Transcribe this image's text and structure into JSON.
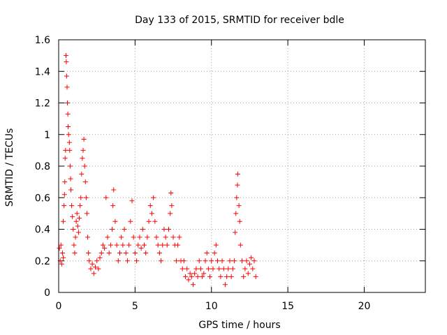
{
  "chart_data": {
    "type": "scatter",
    "title": "Day 133 of 2015, SRMTID for receiver bdle",
    "xlabel": "GPS time / hours",
    "ylabel": "SRMTID / TECUs",
    "xlim": [
      0,
      24
    ],
    "ylim": [
      0,
      1.6
    ],
    "xticks": [
      0,
      5,
      10,
      15,
      20
    ],
    "yticks": [
      0,
      0.2,
      0.4,
      0.6,
      0.8,
      1,
      1.2,
      1.4,
      1.6
    ],
    "xtick_labels": [
      "0",
      "5",
      "10",
      "15",
      "20"
    ],
    "ytick_labels": [
      "0",
      "0.2",
      "0.4",
      "0.6",
      "0.8",
      "1",
      "1.2",
      "1.4",
      "1.6"
    ],
    "grid": true,
    "marker": "+",
    "color": "#ff0000",
    "series": [
      {
        "name": "SRMTID",
        "points": [
          [
            0.05,
            0.28
          ],
          [
            0.1,
            0.2
          ],
          [
            0.15,
            0.3
          ],
          [
            0.2,
            0.18
          ],
          [
            0.25,
            0.25
          ],
          [
            0.3,
            0.22
          ],
          [
            0.3,
            0.45
          ],
          [
            0.35,
            0.55
          ],
          [
            0.38,
            0.62
          ],
          [
            0.4,
            0.7
          ],
          [
            0.42,
            0.85
          ],
          [
            0.45,
            0.9
          ],
          [
            0.48,
            1.5
          ],
          [
            0.5,
            1.46
          ],
          [
            0.52,
            1.37
          ],
          [
            0.55,
            1.3
          ],
          [
            0.57,
            1.2
          ],
          [
            0.6,
            1.13
          ],
          [
            0.62,
            1.05
          ],
          [
            0.65,
            1.0
          ],
          [
            0.7,
            0.95
          ],
          [
            0.72,
            0.9
          ],
          [
            0.75,
            0.8
          ],
          [
            0.78,
            0.72
          ],
          [
            0.8,
            0.65
          ],
          [
            0.85,
            0.55
          ],
          [
            0.9,
            0.48
          ],
          [
            0.95,
            0.4
          ],
          [
            1.0,
            0.3
          ],
          [
            1.05,
            0.25
          ],
          [
            1.1,
            0.35
          ],
          [
            1.15,
            0.45
          ],
          [
            1.2,
            0.5
          ],
          [
            1.25,
            0.42
          ],
          [
            1.3,
            0.38
          ],
          [
            1.35,
            0.47
          ],
          [
            1.4,
            0.55
          ],
          [
            1.45,
            0.6
          ],
          [
            1.5,
            0.75
          ],
          [
            1.55,
            0.85
          ],
          [
            1.6,
            0.9
          ],
          [
            1.65,
            0.97
          ],
          [
            1.7,
            0.8
          ],
          [
            1.75,
            0.7
          ],
          [
            1.8,
            0.6
          ],
          [
            1.85,
            0.5
          ],
          [
            1.9,
            0.35
          ],
          [
            1.95,
            0.25
          ],
          [
            2.0,
            0.2
          ],
          [
            2.1,
            0.15
          ],
          [
            2.2,
            0.18
          ],
          [
            2.3,
            0.12
          ],
          [
            2.4,
            0.16
          ],
          [
            2.5,
            0.2
          ],
          [
            2.6,
            0.15
          ],
          [
            2.7,
            0.22
          ],
          [
            2.8,
            0.25
          ],
          [
            2.9,
            0.3
          ],
          [
            3.0,
            0.28
          ],
          [
            3.1,
            0.6
          ],
          [
            3.2,
            0.35
          ],
          [
            3.3,
            0.25
          ],
          [
            3.4,
            0.3
          ],
          [
            3.5,
            0.4
          ],
          [
            3.55,
            0.55
          ],
          [
            3.6,
            0.65
          ],
          [
            3.7,
            0.45
          ],
          [
            3.8,
            0.3
          ],
          [
            3.9,
            0.2
          ],
          [
            4.0,
            0.25
          ],
          [
            4.1,
            0.35
          ],
          [
            4.2,
            0.3
          ],
          [
            4.3,
            0.4
          ],
          [
            4.4,
            0.25
          ],
          [
            4.5,
            0.2
          ],
          [
            4.6,
            0.3
          ],
          [
            4.7,
            0.45
          ],
          [
            4.8,
            0.58
          ],
          [
            4.9,
            0.35
          ],
          [
            5.0,
            0.25
          ],
          [
            5.1,
            0.2
          ],
          [
            5.2,
            0.3
          ],
          [
            5.3,
            0.35
          ],
          [
            5.4,
            0.28
          ],
          [
            5.5,
            0.4
          ],
          [
            5.6,
            0.3
          ],
          [
            5.7,
            0.25
          ],
          [
            5.8,
            0.35
          ],
          [
            5.9,
            0.45
          ],
          [
            6.0,
            0.55
          ],
          [
            6.1,
            0.5
          ],
          [
            6.2,
            0.6
          ],
          [
            6.3,
            0.45
          ],
          [
            6.4,
            0.35
          ],
          [
            6.5,
            0.3
          ],
          [
            6.6,
            0.25
          ],
          [
            6.7,
            0.2
          ],
          [
            6.8,
            0.3
          ],
          [
            6.9,
            0.4
          ],
          [
            7.0,
            0.35
          ],
          [
            7.1,
            0.3
          ],
          [
            7.2,
            0.4
          ],
          [
            7.3,
            0.5
          ],
          [
            7.35,
            0.63
          ],
          [
            7.4,
            0.55
          ],
          [
            7.5,
            0.35
          ],
          [
            7.6,
            0.3
          ],
          [
            7.7,
            0.2
          ],
          [
            7.8,
            0.3
          ],
          [
            7.9,
            0.35
          ],
          [
            8.0,
            0.2
          ],
          [
            8.1,
            0.15
          ],
          [
            8.2,
            0.2
          ],
          [
            8.3,
            0.1
          ],
          [
            8.4,
            0.15
          ],
          [
            8.5,
            0.08
          ],
          [
            8.6,
            0.12
          ],
          [
            8.7,
            0.1
          ],
          [
            8.8,
            0.05
          ],
          [
            8.9,
            0.12
          ],
          [
            9.0,
            0.15
          ],
          [
            9.1,
            0.1
          ],
          [
            9.2,
            0.2
          ],
          [
            9.3,
            0.15
          ],
          [
            9.4,
            0.1
          ],
          [
            9.5,
            0.12
          ],
          [
            9.6,
            0.2
          ],
          [
            9.7,
            0.25
          ],
          [
            9.8,
            0.15
          ],
          [
            9.9,
            0.1
          ],
          [
            10.0,
            0.2
          ],
          [
            10.1,
            0.15
          ],
          [
            10.2,
            0.25
          ],
          [
            10.3,
            0.3
          ],
          [
            10.4,
            0.2
          ],
          [
            10.5,
            0.15
          ],
          [
            10.6,
            0.1
          ],
          [
            10.7,
            0.2
          ],
          [
            10.8,
            0.15
          ],
          [
            10.9,
            0.05
          ],
          [
            11.0,
            0.1
          ],
          [
            11.1,
            0.15
          ],
          [
            11.2,
            0.2
          ],
          [
            11.3,
            0.1
          ],
          [
            11.4,
            0.15
          ],
          [
            11.5,
            0.2
          ],
          [
            11.55,
            0.38
          ],
          [
            11.6,
            0.5
          ],
          [
            11.65,
            0.6
          ],
          [
            11.7,
            0.68
          ],
          [
            11.72,
            0.75
          ],
          [
            11.8,
            0.55
          ],
          [
            11.85,
            0.45
          ],
          [
            11.9,
            0.3
          ],
          [
            12.0,
            0.2
          ],
          [
            12.1,
            0.1
          ],
          [
            12.2,
            0.15
          ],
          [
            12.3,
            0.2
          ],
          [
            12.4,
            0.12
          ],
          [
            12.5,
            0.18
          ],
          [
            12.6,
            0.22
          ],
          [
            12.7,
            0.15
          ],
          [
            12.8,
            0.2
          ],
          [
            12.9,
            0.1
          ]
        ]
      }
    ]
  }
}
